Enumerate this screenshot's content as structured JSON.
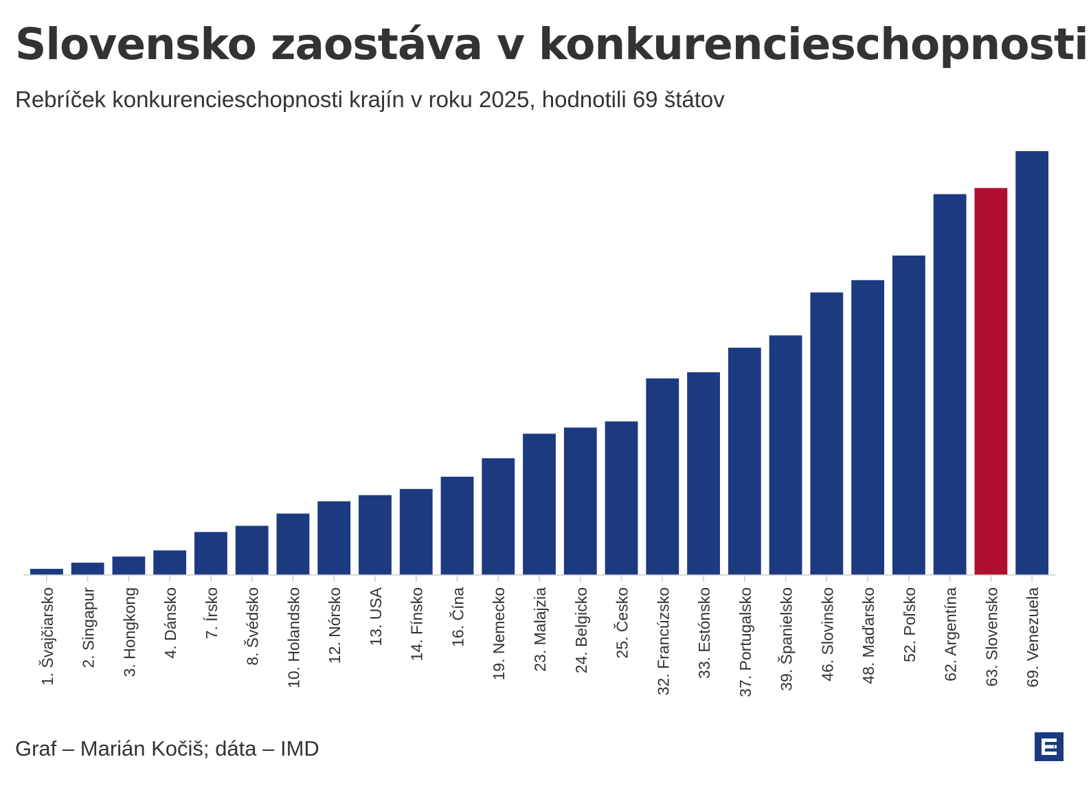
{
  "header": {
    "title": "Slovensko zaostáva v konkurencieschopnosti",
    "subtitle": "Rebríček konkurencieschopnosti krajín v roku 2025, hodnotili 69 štátov"
  },
  "footer": {
    "source": "Graf – Marián Kočiš; dáta – IMD"
  },
  "colors": {
    "bar_default": "#1c3a80",
    "bar_highlight": "#b0102f",
    "text": "#333333",
    "axis": "#cccccc",
    "logo": "#1c3a80"
  },
  "logo_icon": "e-logo-icon",
  "chart_data": {
    "type": "bar",
    "categories": [
      "1. Švajčiarsko",
      "2. Singapur",
      "3. Hongkong",
      "4. Dánsko",
      "7. Írsko",
      "8. Švédsko",
      "10. Holandsko",
      "12. Nórsko",
      "13. USA",
      "14. Fínsko",
      "16. Čína",
      "19. Nemecko",
      "23. Malajzia",
      "24. Belgicko",
      "25. Česko",
      "32. Francúzsko",
      "33. Estónsko",
      "37. Portugalsko",
      "39. Španielsko",
      "46. Slovinsko",
      "48. Maďarsko",
      "52. Poľsko",
      "62. Argentína",
      "63. Slovensko",
      "69. Venezuela"
    ],
    "values": [
      1,
      2,
      3,
      4,
      7,
      8,
      10,
      12,
      13,
      14,
      16,
      19,
      23,
      24,
      25,
      32,
      33,
      37,
      39,
      46,
      48,
      52,
      62,
      63,
      69
    ],
    "highlight": "63. Slovensko",
    "title": "Slovensko zaostáva v konkurencieschopnosti",
    "subtitle": "Rebríček konkurencieschopnosti krajín v roku 2025, hodnotili 69 štátov",
    "xlabel": "",
    "ylabel": "",
    "ylim": [
      0,
      69
    ],
    "grid": false,
    "legend": "none"
  }
}
